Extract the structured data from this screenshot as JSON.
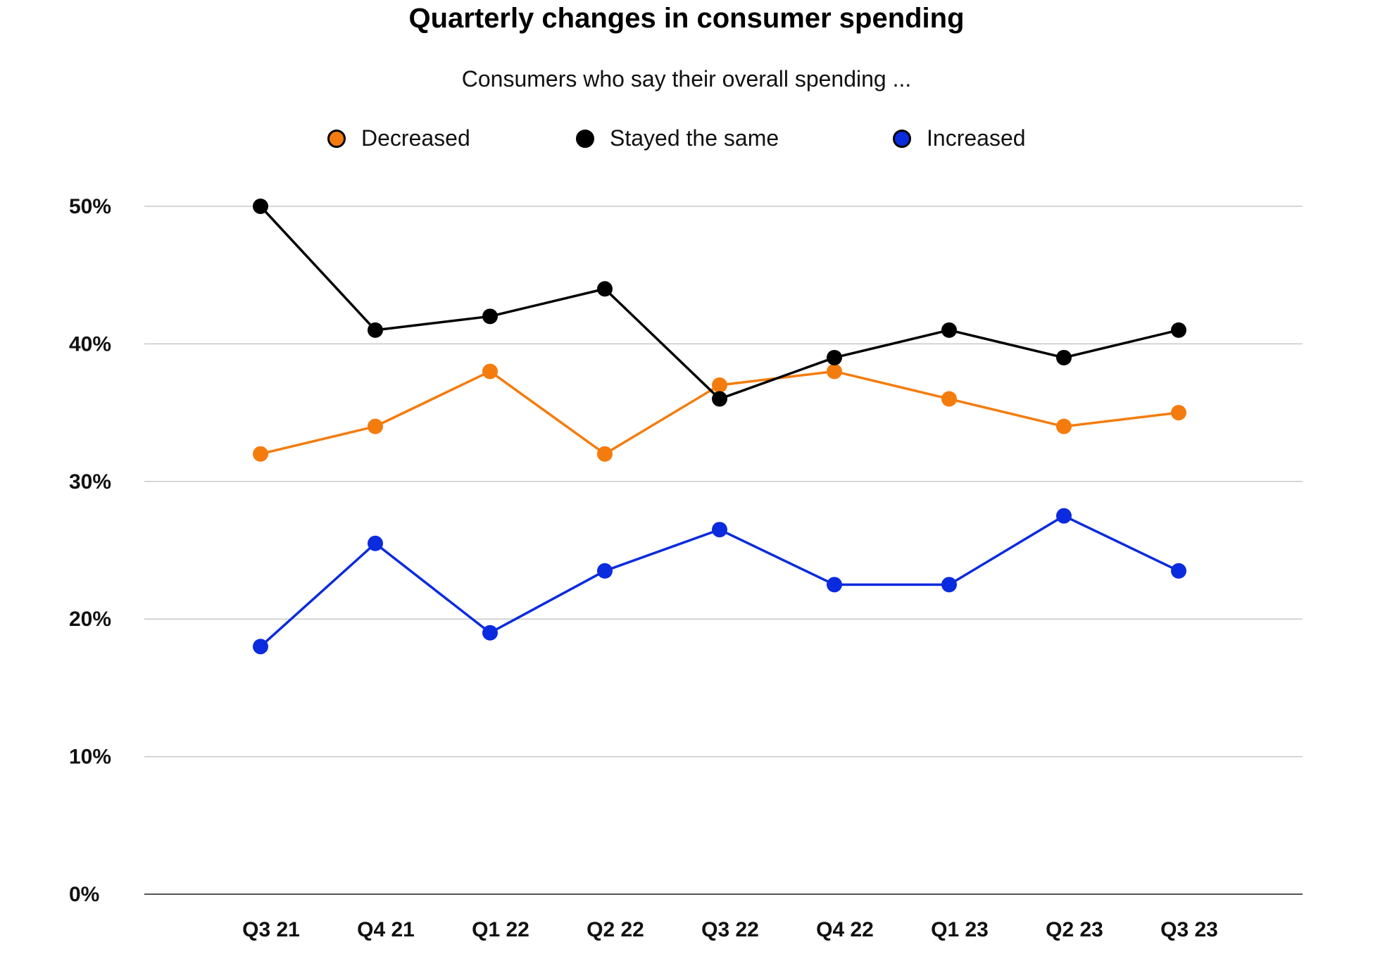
{
  "title": "Quarterly changes in consumer spending",
  "subtitle": "Consumers who say their overall spending ...",
  "colors": {
    "decreased": "#F47C0E",
    "stayed": "#000000",
    "increased": "#0B2BDE",
    "grid": "#C8C8C8",
    "axis": "#555555"
  },
  "chart_data": {
    "type": "line",
    "categories": [
      "Q3 21",
      "Q4 21",
      "Q1 22",
      "Q2 22",
      "Q3 22",
      "Q4 22",
      "Q1 23",
      "Q2 23",
      "Q3 23"
    ],
    "series": [
      {
        "name": "Decreased",
        "color": "#F47C0E",
        "values": [
          32,
          34,
          38,
          32,
          37,
          38,
          36,
          34,
          35
        ]
      },
      {
        "name": "Stayed the same",
        "color": "#000000",
        "values": [
          50,
          41,
          42,
          44,
          36,
          39,
          41,
          39,
          41
        ]
      },
      {
        "name": "Increased",
        "color": "#0B2BDE",
        "values": [
          18,
          25.5,
          19,
          23.5,
          26.5,
          22.5,
          22.5,
          27.5,
          23.5
        ]
      }
    ],
    "y_ticks": [
      "0%",
      "10%",
      "20%",
      "30%",
      "40%",
      "50%"
    ],
    "y_tick_values": [
      0,
      10,
      20,
      30,
      40,
      50
    ],
    "ylim": [
      0,
      50
    ],
    "grid": true,
    "legend_position": "top-center"
  }
}
